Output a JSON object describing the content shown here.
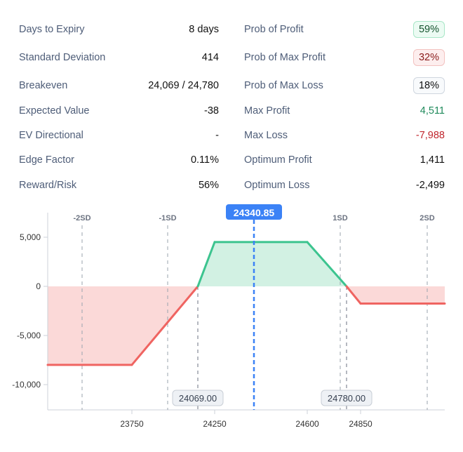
{
  "stats_left": [
    {
      "label": "Days to Expiry",
      "value": "8 days"
    },
    {
      "label": "Standard Deviation",
      "value": "414"
    },
    {
      "label": "Breakeven",
      "value": "24,069 / 24,780"
    },
    {
      "label": "Expected Value",
      "value": "-38"
    },
    {
      "label": "EV Directional",
      "value": "-"
    },
    {
      "label": "Edge Factor",
      "value": "0.11%"
    },
    {
      "label": "Reward/Risk",
      "value": "56%"
    }
  ],
  "stats_right": [
    {
      "label": "Prob of Profit",
      "value": "59%",
      "style": "badge-green"
    },
    {
      "label": "Prob of Max Profit",
      "value": "32%",
      "style": "badge-red"
    },
    {
      "label": "Prob of Max Loss",
      "value": "18%",
      "style": "badge-gray"
    },
    {
      "label": "Max Profit",
      "value": "4,511",
      "color": "#1f8a5b"
    },
    {
      "label": "Max Loss",
      "value": "-7,988",
      "color": "#c0262d"
    },
    {
      "label": "Optimum Profit",
      "value": "1,411"
    },
    {
      "label": "Optimum Loss",
      "value": "-2,499"
    }
  ],
  "colors": {
    "profit": "#3cc48f",
    "loss": "#ef6461",
    "profit_fill": "#d2f1e3",
    "loss_fill": "#fbd9d8",
    "spot": "#3b82f6"
  },
  "chart_data": {
    "type": "area",
    "x_ticks": [
      "23750",
      "24250",
      "24600",
      "24850"
    ],
    "y_ticks": [
      "5,000",
      "0",
      "-5,000",
      "-10,000"
    ],
    "ylim": [
      -12500,
      7500
    ],
    "payoff": [
      [
        23750,
        -7988
      ],
      [
        24069,
        0
      ],
      [
        24250,
        4511
      ],
      [
        24600,
        4511
      ],
      [
        24780,
        0
      ],
      [
        24850,
        -1750
      ]
    ],
    "spot": {
      "value": 24340.85,
      "label": "24340.85"
    },
    "breakevens": [
      {
        "value": 24069,
        "label": "24069.00"
      },
      {
        "value": 24780,
        "label": "24780.00"
      }
    ],
    "sd_lines": [
      {
        "label": "-2SD",
        "value": 23512.85
      },
      {
        "label": "-1SD",
        "value": 23926.85
      },
      {
        "label": "1SD",
        "value": 24754.85
      },
      {
        "label": "2SD",
        "value": 25168.85
      }
    ]
  }
}
